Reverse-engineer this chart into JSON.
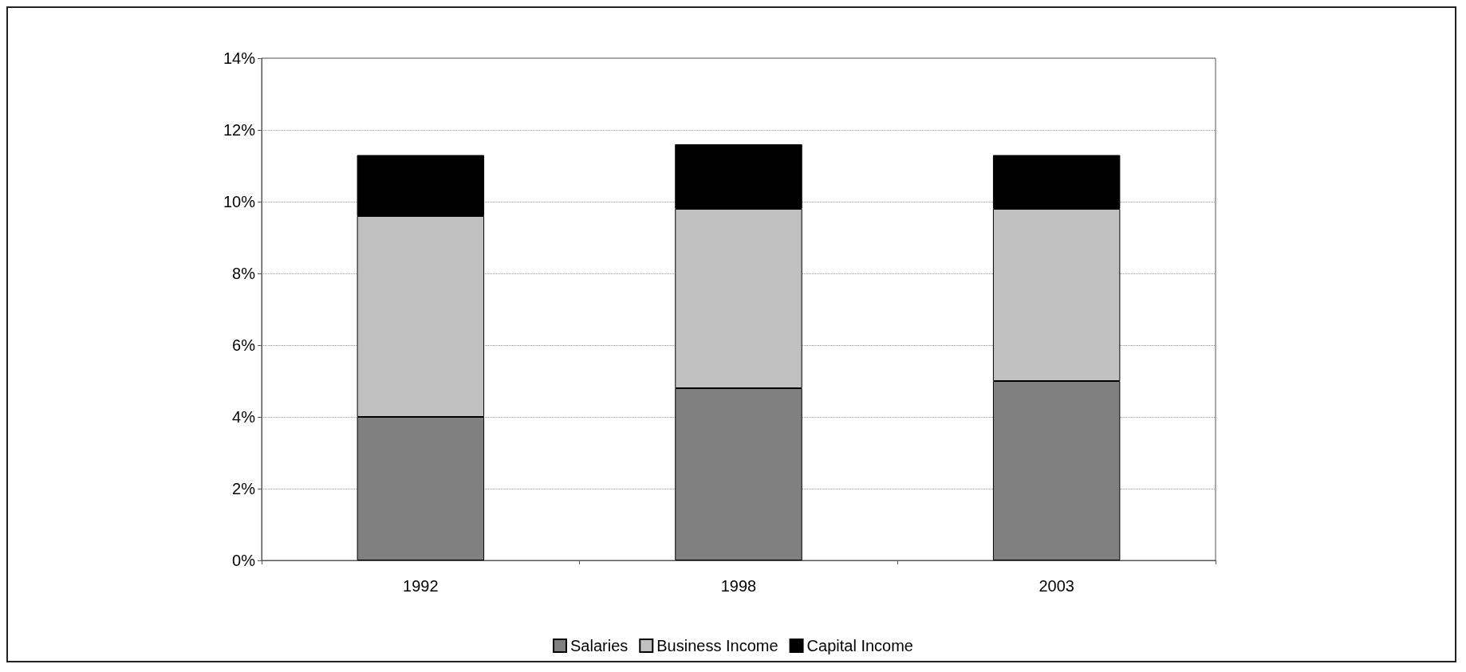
{
  "chart_data": {
    "type": "bar",
    "stacked": true,
    "categories": [
      "1992",
      "1998",
      "2003"
    ],
    "series": [
      {
        "name": "Salaries",
        "color": "#808080",
        "values": [
          4.0,
          4.8,
          5.0
        ]
      },
      {
        "name": "Business Income",
        "color": "#c0c0c0",
        "values": [
          5.6,
          5.0,
          4.8
        ]
      },
      {
        "name": "Capital Income",
        "color": "#000000",
        "values": [
          1.7,
          1.8,
          1.5
        ]
      }
    ],
    "ylim": [
      0,
      14
    ],
    "yticks": [
      {
        "value": 0,
        "label": "0%"
      },
      {
        "value": 2,
        "label": "2%"
      },
      {
        "value": 4,
        "label": "4%"
      },
      {
        "value": 6,
        "label": "6%"
      },
      {
        "value": 8,
        "label": "8%"
      },
      {
        "value": 10,
        "label": "10%"
      },
      {
        "value": 12,
        "label": "12%"
      },
      {
        "value": 14,
        "label": "14%"
      }
    ],
    "grid": "y",
    "legend": "bottom"
  }
}
